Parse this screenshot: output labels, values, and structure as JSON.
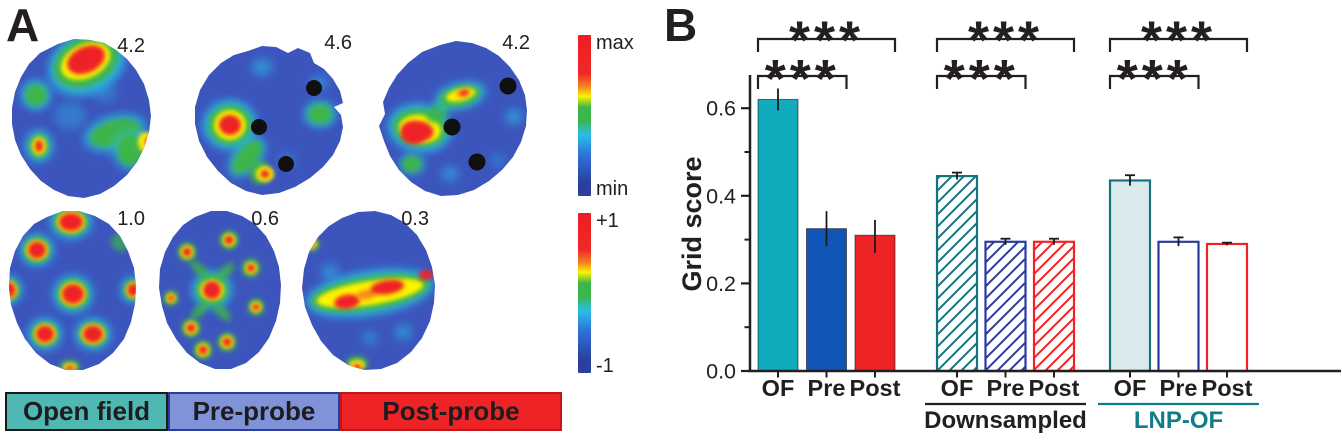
{
  "panel_a": {
    "label": "A",
    "rate_maps": [
      {
        "name": "open-field",
        "peak_label": "4.2",
        "probe_dots": 0
      },
      {
        "name": "pre-probe",
        "peak_label": "4.6",
        "probe_dots": 3
      },
      {
        "name": "post-probe",
        "peak_label": "4.2",
        "probe_dots": 3
      }
    ],
    "autocorrelograms": [
      {
        "name": "open-field",
        "grid_score_label": "1.0"
      },
      {
        "name": "pre-probe",
        "grid_score_label": "0.6"
      },
      {
        "name": "post-probe",
        "grid_score_label": "0.3"
      }
    ],
    "colorbar_rate": {
      "top_label": "max",
      "bottom_label": "min"
    },
    "colorbar_autocorr": {
      "top_label": "+1",
      "bottom_label": "-1"
    },
    "legend": [
      {
        "label": "Open field",
        "color": "#4FB8B2",
        "border_color": "#1A1A1A"
      },
      {
        "label": "Pre-probe",
        "color": "#8093D9",
        "border_color": "#2B3A9E"
      },
      {
        "label": "Post-probe",
        "color": "#EE2326",
        "border_color": "#C0161B"
      }
    ]
  },
  "panel_b": {
    "label": "B"
  },
  "chart_data": {
    "type": "bar",
    "title": "",
    "xlabel": "",
    "ylabel": "Grid score",
    "ylim": [
      0,
      0.68
    ],
    "yticks": [
      0.0,
      0.2,
      0.4,
      0.6
    ],
    "ytick_labels": [
      "0.0",
      "0.2",
      "0.4",
      "0.6"
    ],
    "yticks_minor": [
      0.1,
      0.3,
      0.5
    ],
    "grid": false,
    "categories": [
      "OF",
      "Pre",
      "Post"
    ],
    "groups": [
      {
        "label": "",
        "label_color": "#231F20",
        "bars": [
          {
            "category": "OF",
            "value": 0.62,
            "err_lo": 0.595,
            "err_hi": 0.645,
            "style": "solid",
            "color": "#10ABBC"
          },
          {
            "category": "Pre",
            "value": 0.325,
            "err_lo": 0.285,
            "err_hi": 0.365,
            "style": "solid",
            "color": "#1155B7"
          },
          {
            "category": "Post",
            "value": 0.31,
            "err_lo": 0.27,
            "err_hi": 0.345,
            "style": "solid",
            "color": "#EE2326"
          }
        ],
        "significance": [
          {
            "pair": [
              "OF",
              "Pre"
            ],
            "label": "***"
          },
          {
            "pair": [
              "OF",
              "Post"
            ],
            "label": "***"
          }
        ]
      },
      {
        "label": "Downsampled",
        "label_color": "#231F20",
        "bars": [
          {
            "category": "OF",
            "value": 0.445,
            "err_lo": 0.437,
            "err_hi": 0.453,
            "style": "hatched",
            "color": "#16737E"
          },
          {
            "category": "Pre",
            "value": 0.295,
            "err_lo": 0.288,
            "err_hi": 0.302,
            "style": "hatched",
            "color": "#2B3A9E"
          },
          {
            "category": "Post",
            "value": 0.295,
            "err_lo": 0.288,
            "err_hi": 0.302,
            "style": "hatched",
            "color": "#EE2326"
          }
        ],
        "significance": [
          {
            "pair": [
              "OF",
              "Pre"
            ],
            "label": "***"
          },
          {
            "pair": [
              "OF",
              "Post"
            ],
            "label": "***"
          }
        ]
      },
      {
        "label": "LNP-OF",
        "label_color": "#127C87",
        "bars": [
          {
            "category": "OF",
            "value": 0.435,
            "err_lo": 0.423,
            "err_hi": 0.447,
            "style": "light",
            "color": "#16737E",
            "fill": "#D9E9EC"
          },
          {
            "category": "Pre",
            "value": 0.295,
            "err_lo": 0.285,
            "err_hi": 0.305,
            "style": "outline",
            "color": "#2B3A9E"
          },
          {
            "category": "Post",
            "value": 0.29,
            "err_lo": 0.287,
            "err_hi": 0.293,
            "style": "outline",
            "color": "#EE2326"
          }
        ],
        "significance": [
          {
            "pair": [
              "OF",
              "Pre"
            ],
            "label": "***"
          },
          {
            "pair": [
              "OF",
              "Post"
            ],
            "label": "***"
          }
        ]
      }
    ]
  }
}
